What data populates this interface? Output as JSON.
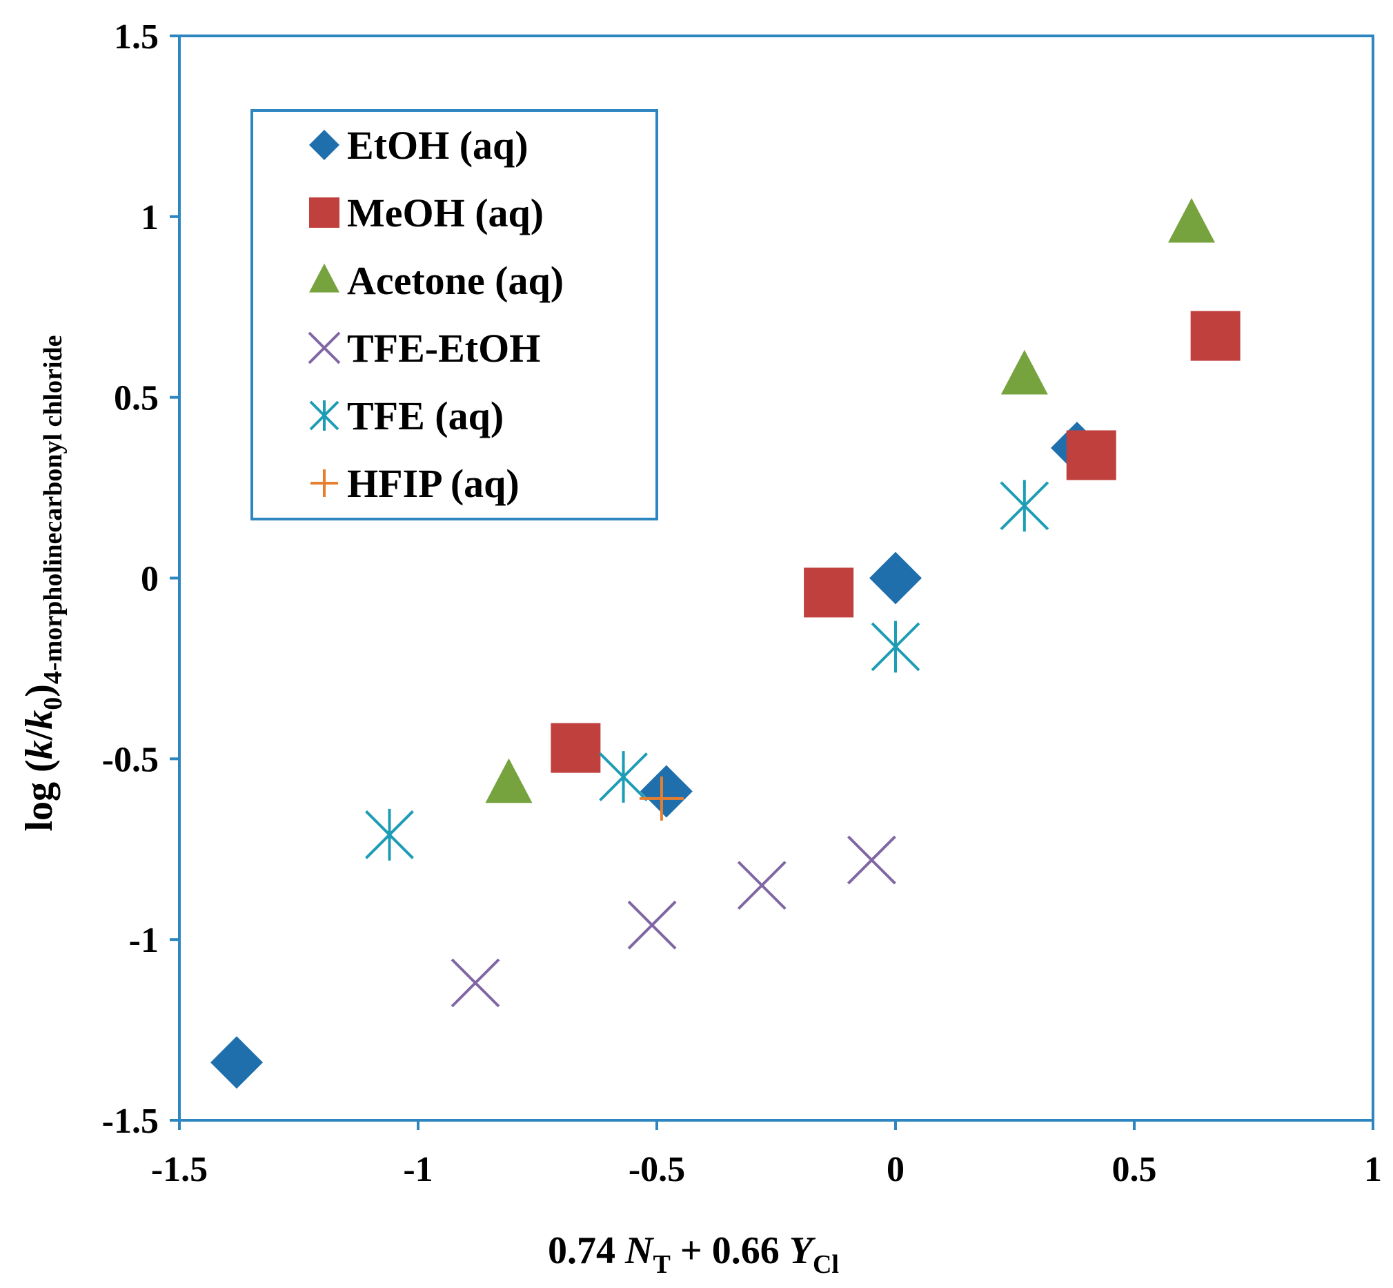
{
  "chart_data": {
    "type": "scatter",
    "x_axis": {
      "label_parts": [
        {
          "text": "0.74 ",
          "italic": false,
          "sub": false
        },
        {
          "text": "N",
          "italic": true,
          "sub": false
        },
        {
          "text": "T",
          "italic": false,
          "sub": true
        },
        {
          "text": " + 0.66 ",
          "italic": false,
          "sub": false
        },
        {
          "text": "Y",
          "italic": true,
          "sub": false
        },
        {
          "text": "Cl",
          "italic": false,
          "sub": true
        }
      ],
      "min": -1.5,
      "max": 1,
      "ticks": [
        -1.5,
        -1,
        -0.5,
        0,
        0.5,
        1
      ],
      "tick_labels": [
        "-1.5",
        "-1",
        "-0.5",
        "0",
        "0.5",
        "1"
      ]
    },
    "y_axis": {
      "label_parts": [
        {
          "text": "log (",
          "italic": false,
          "sub": false
        },
        {
          "text": "k",
          "italic": true,
          "sub": false
        },
        {
          "text": "/",
          "italic": false,
          "sub": false
        },
        {
          "text": "k",
          "italic": true,
          "sub": false
        },
        {
          "text": "0",
          "italic": false,
          "sub": true
        },
        {
          "text": ")",
          "italic": false,
          "sub": false
        },
        {
          "text": "4-morpholinecarbonyl chloride",
          "italic": false,
          "sub": true
        }
      ],
      "min": -1.5,
      "max": 1.5,
      "ticks": [
        -1.5,
        -1,
        -0.5,
        0,
        0.5,
        1,
        1.5
      ],
      "tick_labels": [
        "-1.5",
        "-1",
        "-0.5",
        "0",
        "0.5",
        "1",
        "1.5"
      ]
    },
    "grid": false,
    "legend_position": "top-left",
    "series": [
      {
        "name": "EtOH (aq)",
        "marker": "diamond",
        "color": "#1F6FAD",
        "points": [
          [
            -1.38,
            -1.34
          ],
          [
            -0.48,
            -0.59
          ],
          [
            0.0,
            0.0
          ],
          [
            0.38,
            0.36
          ]
        ]
      },
      {
        "name": "MeOH (aq)",
        "marker": "square",
        "color": "#C0403E",
        "points": [
          [
            -0.67,
            -0.47
          ],
          [
            -0.14,
            -0.04
          ],
          [
            0.41,
            0.34
          ],
          [
            0.67,
            0.67
          ]
        ]
      },
      {
        "name": "Acetone (aq)",
        "marker": "triangle",
        "color": "#77A33F",
        "points": [
          [
            -0.81,
            -0.57
          ],
          [
            0.27,
            0.56
          ],
          [
            0.62,
            0.98
          ]
        ]
      },
      {
        "name": "TFE-EtOH",
        "marker": "x",
        "color": "#8066A3",
        "points": [
          [
            -0.88,
            -1.12
          ],
          [
            -0.51,
            -0.96
          ],
          [
            -0.28,
            -0.85
          ],
          [
            -0.05,
            -0.78
          ]
        ]
      },
      {
        "name": "TFE (aq)",
        "marker": "asterisk",
        "color": "#1D9DB5",
        "points": [
          [
            -1.06,
            -0.71
          ],
          [
            -0.57,
            -0.55
          ],
          [
            0.0,
            -0.19
          ],
          [
            0.27,
            0.2
          ]
        ]
      },
      {
        "name": "HFIP (aq)",
        "marker": "plus",
        "color": "#E87F2E",
        "points": [
          [
            -0.49,
            -0.61
          ]
        ]
      }
    ]
  },
  "colors": {
    "frame": "#2E86C1"
  }
}
